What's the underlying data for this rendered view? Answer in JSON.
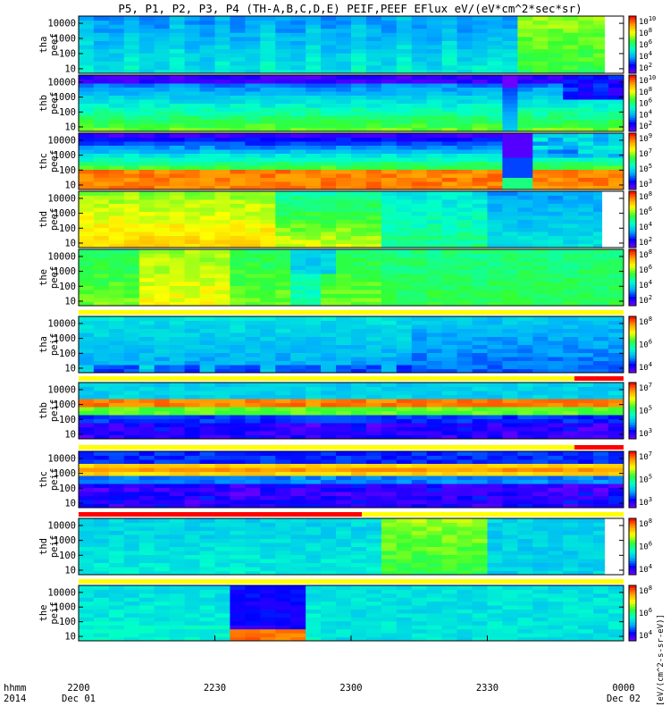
{
  "chart_data": {
    "type": "heatmap",
    "title": "P5, P1, P2, P3, P4 (TH-A,B,C,D,E) PEIF,PEEF EFlux eV/(eV*cm^2*sec*sr)",
    "xaxis": {
      "ticks": [
        "2200",
        "2230",
        "2300",
        "2330",
        "0000"
      ],
      "tick_dates": [
        "Dec 01",
        "",
        "",
        "",
        "Dec 02"
      ],
      "label_lines": [
        "hhmm",
        "2014"
      ],
      "range_minutes": [
        0,
        120
      ]
    },
    "y_ticks": [
      "10000",
      "1000",
      "100",
      "10"
    ],
    "y_scale": "log",
    "y_range": [
      5,
      30000
    ],
    "colorbar_label": "[eV/(cm^2-s-sr-eV)]",
    "colormap": [
      "#7f00ff",
      "#0000ff",
      "#00aaff",
      "#00ffcc",
      "#33ff33",
      "#ffff00",
      "#ff9900",
      "#ff0000"
    ],
    "panels": [
      {
        "label": [
          "tha",
          "peef"
        ],
        "cbar": [
          "10^10",
          "10^8",
          "10^6",
          "10^4",
          "10^2"
        ],
        "topbar": "",
        "pattern": "a_e",
        "gap_end": 0.965
      },
      {
        "label": [
          "thb",
          "peef"
        ],
        "cbar": [
          "10^10",
          "10^8",
          "10^6",
          "10^4",
          "10^2"
        ],
        "topbar": "",
        "pattern": "b_e",
        "gap_end": 1.0
      },
      {
        "label": [
          "thc",
          "peef"
        ],
        "cbar": [
          "10^9",
          "10^7",
          "10^5",
          "10^3"
        ],
        "topbar": "",
        "pattern": "c_e",
        "gap_end": 1.0
      },
      {
        "label": [
          "thd",
          "peef"
        ],
        "cbar": [
          "10^8",
          "10^6",
          "10^4",
          "10^2"
        ],
        "topbar": "",
        "pattern": "d_e",
        "gap_end": 0.96
      },
      {
        "label": [
          "the",
          "peef"
        ],
        "cbar": [
          "10^8",
          "10^6",
          "10^4",
          "10^2"
        ],
        "topbar": "",
        "pattern": "e_e",
        "gap_end": 1.0
      },
      {
        "label": [
          "tha",
          "peif"
        ],
        "cbar": [
          "10^8",
          "10^6",
          "10^4"
        ],
        "topbar": "yellow",
        "pattern": "a_i",
        "gap_end": 1.0
      },
      {
        "label": [
          "thb",
          "peif"
        ],
        "cbar": [
          "10^7",
          "10^5",
          "10^3"
        ],
        "topbar": "yellow_red_end",
        "pattern": "b_i",
        "gap_end": 1.0
      },
      {
        "label": [
          "thc",
          "peif"
        ],
        "cbar": [
          "10^7",
          "10^5",
          "10^3"
        ],
        "topbar": "yellow_red_end",
        "pattern": "c_i",
        "gap_end": 1.0
      },
      {
        "label": [
          "thd",
          "peif"
        ],
        "cbar": [
          "10^8",
          "10^6",
          "10^4"
        ],
        "topbar": "red_start",
        "pattern": "d_i",
        "gap_end": 0.965
      },
      {
        "label": [
          "the",
          "peif"
        ],
        "cbar": [
          "10^8",
          "10^6",
          "10^4"
        ],
        "topbar": "yellow",
        "pattern": "e_i",
        "gap_end": 1.0
      }
    ]
  }
}
